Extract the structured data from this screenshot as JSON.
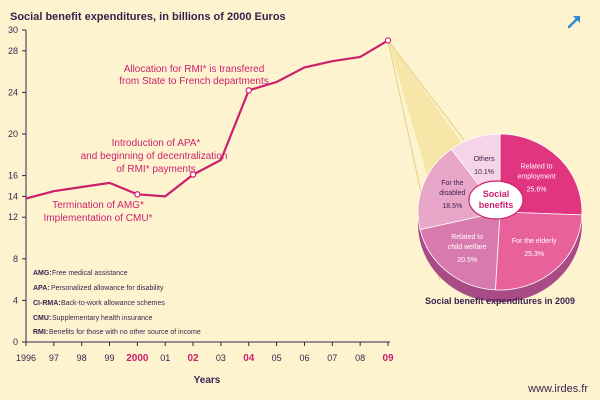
{
  "title": "Social benefit expenditures, in billions of 2000 Euros",
  "site": "www.irdes.fr",
  "colors": {
    "background": "#fdf4cf",
    "line": "#cc1f6e",
    "text": "#3a1f4d",
    "axis": "#3a1f4d"
  },
  "chart_data": [
    {
      "type": "line",
      "title": "Social benefit expenditures, in billions of 2000 Euros",
      "xlabel": "Years",
      "ylabel": "",
      "x": [
        1996,
        1997,
        1998,
        1999,
        2000,
        2001,
        2002,
        2003,
        2004,
        2005,
        2006,
        2007,
        2008,
        2009
      ],
      "x_tick_labels": [
        "1996",
        "97",
        "98",
        "99",
        "2000",
        "01",
        "02",
        "03",
        "04",
        "05",
        "06",
        "07",
        "08",
        "09"
      ],
      "x_tick_bold": [
        false,
        false,
        false,
        false,
        true,
        false,
        true,
        false,
        true,
        false,
        false,
        false,
        false,
        true
      ],
      "y_ticks": [
        0,
        4,
        8,
        12,
        14,
        16,
        20,
        24,
        28,
        30
      ],
      "ylim": [
        0,
        30
      ],
      "series": [
        {
          "values": [
            13.8,
            14.5,
            14.9,
            15.3,
            14.2,
            14.0,
            16.1,
            17.5,
            24.2,
            25.0,
            26.4,
            27.0,
            27.4,
            29.0
          ]
        }
      ],
      "markers": [
        2000,
        2002,
        2004,
        2009
      ],
      "annotations": [
        {
          "lines": [
            "Allocation for RMI* is transfered",
            "from State to French departments"
          ]
        },
        {
          "lines": [
            "Introduction of APA*",
            "and beginning of decentralization",
            "of RMI* payments"
          ]
        },
        {
          "lines": [
            "Termination of AMG*",
            "Implementation of CMU*"
          ]
        }
      ],
      "legend": [
        {
          "key": "AMG",
          "text": "Free medical assistance"
        },
        {
          "key": "APA",
          "text": "Personalized allowance for disability"
        },
        {
          "key": "CI-RMA",
          "text": "Back-to-work allowance schemes"
        },
        {
          "key": "CMU",
          "text": "Supplementary health insurance"
        },
        {
          "key": "RMI",
          "text": "Benefits for those with no other source of income"
        }
      ]
    },
    {
      "type": "pie",
      "title": "Social benefit expenditures in 2009",
      "center_label": [
        "Social",
        "benefits"
      ],
      "slices": [
        {
          "label": [
            "Related to",
            "employment"
          ],
          "value": 25.6,
          "value_label": "25.6%",
          "color": "#e2357f"
        },
        {
          "label": [
            "For the elderly"
          ],
          "value": 25.3,
          "value_label": "25.3%",
          "color": "#e9619a"
        },
        {
          "label": [
            "Related to",
            "child welfare"
          ],
          "value": 20.5,
          "value_label": "20.5%",
          "color": "#d97aae"
        },
        {
          "label": [
            "For the",
            "disabled"
          ],
          "value": 18.5,
          "value_label": "18.5%",
          "color": "#e8a6c9"
        },
        {
          "label": [
            "Others"
          ],
          "value": 10.1,
          "value_label": "10.1%",
          "color": "#f4d4e6"
        }
      ]
    }
  ]
}
